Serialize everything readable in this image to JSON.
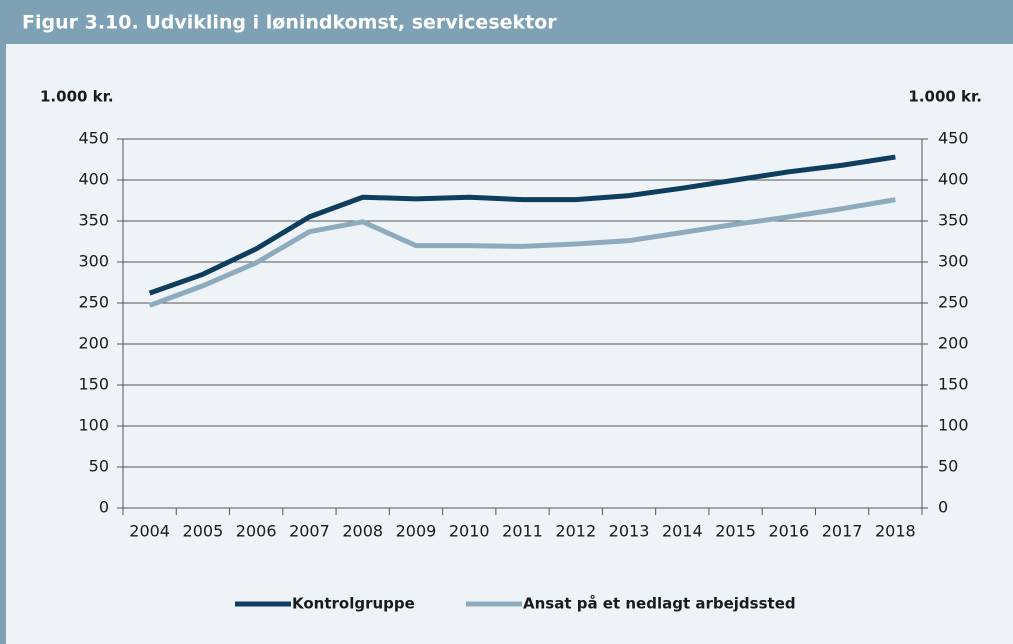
{
  "chart_data": {
    "type": "line",
    "title": "Figur 3.10. Udvikling i lønindkomst, servicesektor",
    "y_label": "1.000 kr.",
    "y2_label": "1.000 kr.",
    "categories": [
      "2004",
      "2005",
      "2006",
      "2007",
      "2008",
      "2009",
      "2010",
      "2011",
      "2012",
      "2013",
      "2014",
      "2015",
      "2016",
      "2017",
      "2018"
    ],
    "series": [
      {
        "name": "Kontrolgruppe",
        "color": "#0f3d5e",
        "values": [
          262,
          285,
          316,
          355,
          379,
          377,
          379,
          376,
          376,
          381,
          390,
          400,
          410,
          418,
          428
        ]
      },
      {
        "name": "Ansat på et nedlagt arbejdssted",
        "color": "#8eabbe",
        "values": [
          247,
          271,
          299,
          337,
          349,
          320,
          320,
          319,
          322,
          326,
          336,
          346,
          355,
          365,
          376
        ]
      }
    ],
    "ylim": [
      0,
      450
    ],
    "yticks": [
      0,
      50,
      100,
      150,
      200,
      250,
      300,
      350,
      400,
      450
    ],
    "y2lim": [
      0,
      450
    ],
    "y2ticks": [
      0,
      50,
      100,
      150,
      200,
      250,
      300,
      350,
      400,
      450
    ],
    "grid": true,
    "legend": "bottom"
  }
}
